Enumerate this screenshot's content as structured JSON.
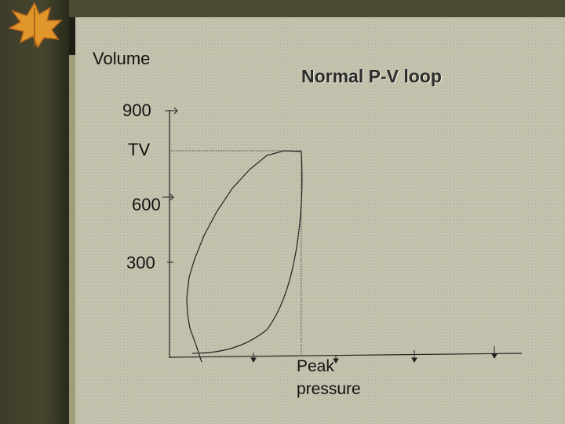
{
  "slide": {
    "title": "Normal P-V loop",
    "y_axis_title": "Volume",
    "y_labels": {
      "v900": "900",
      "tv": "TV",
      "v600": "600",
      "v300": "300"
    },
    "x_label_line1": "Peak",
    "x_label_line2": "pressure"
  },
  "colors": {
    "background": "#c4c2ad",
    "frame": "#2a2a1c",
    "ink": "#111111"
  },
  "icons": {
    "decoration": "autumn-leaf-icon"
  }
}
